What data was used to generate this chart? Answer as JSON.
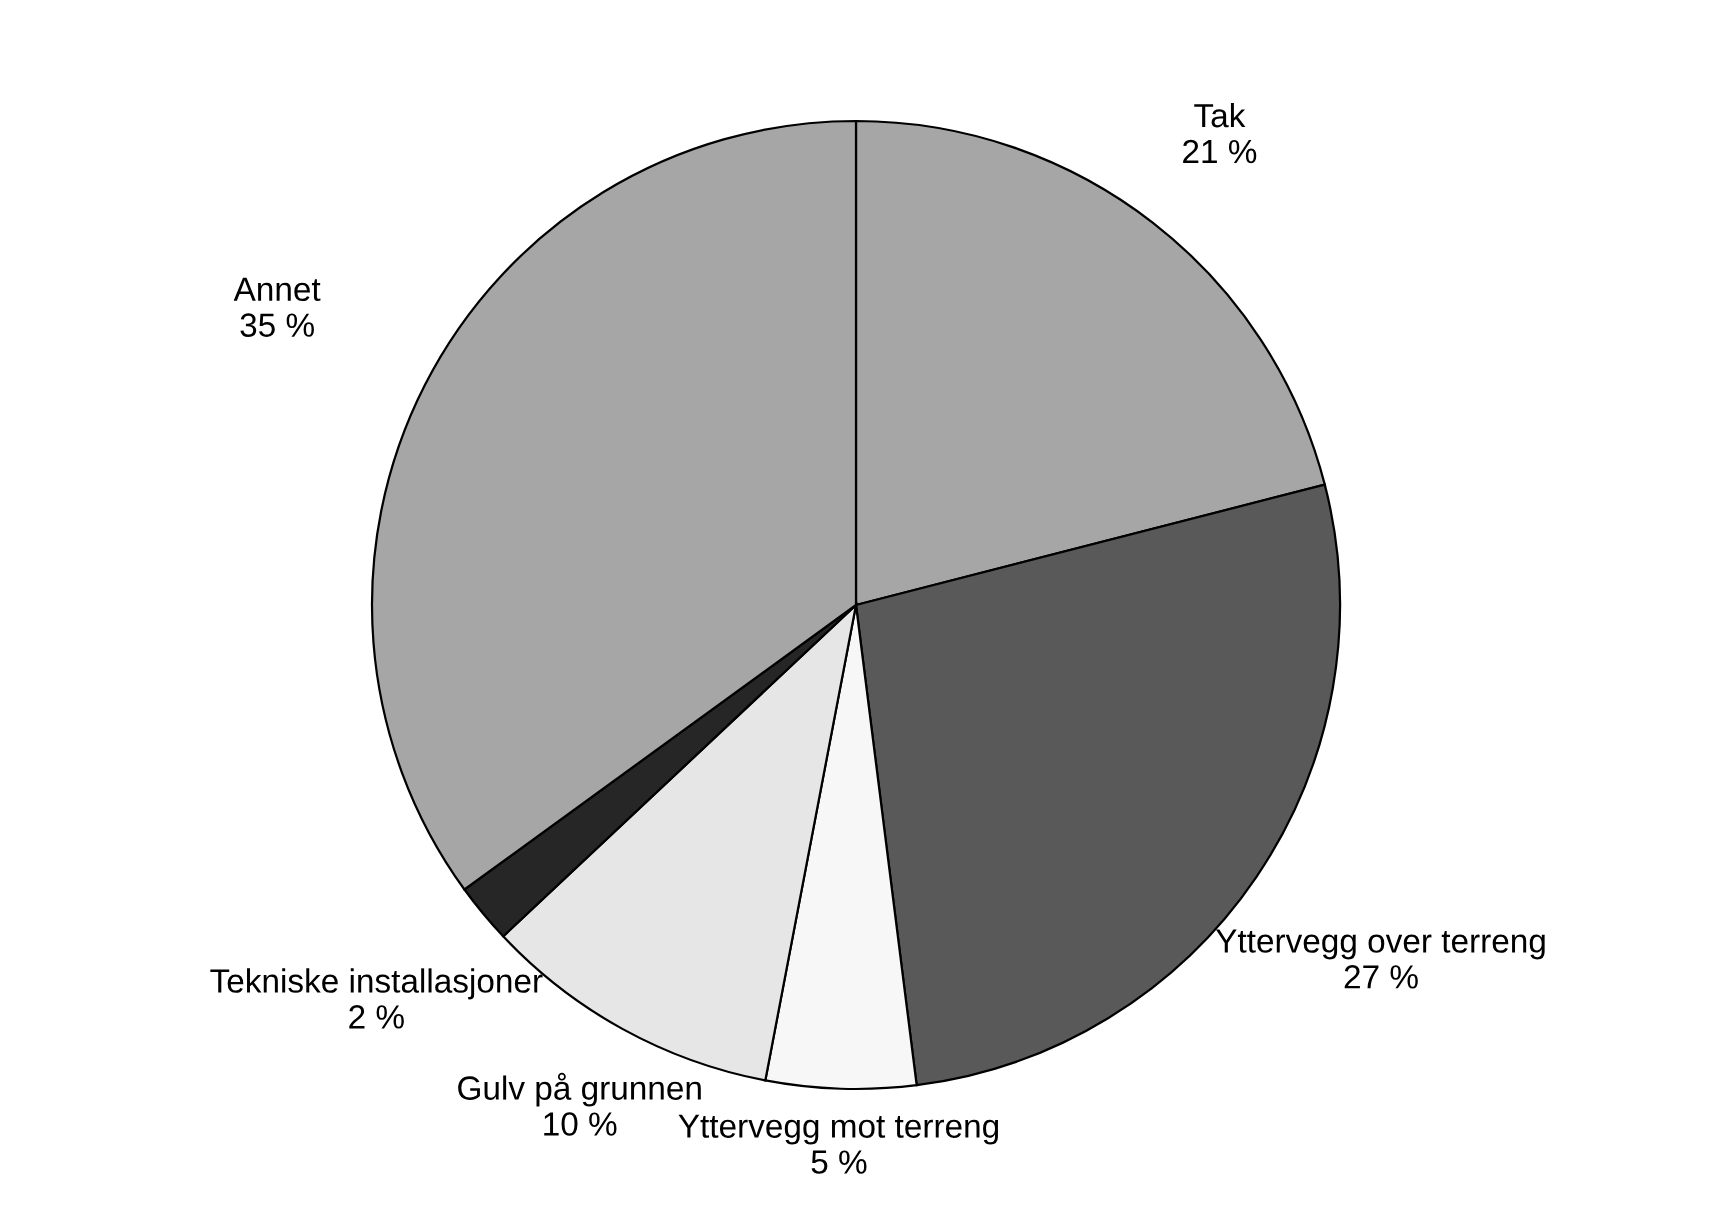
{
  "chart_data": {
    "type": "pie",
    "categories": [
      "Tak",
      "Yttervegg over terreng",
      "Yttervegg mot terreng",
      "Gulv på grunnen",
      "Tekniske installasjoner",
      "Annet"
    ],
    "values": [
      21,
      27,
      5,
      10,
      2,
      35
    ],
    "value_labels": [
      "21 %",
      "27 %",
      "5 %",
      "10 %",
      "2 %",
      "35 %"
    ],
    "colors": [
      "#a6a6a6",
      "#595959",
      "#f7f7f7",
      "#e6e6e6",
      "#262626",
      "#a6a6a6"
    ]
  }
}
